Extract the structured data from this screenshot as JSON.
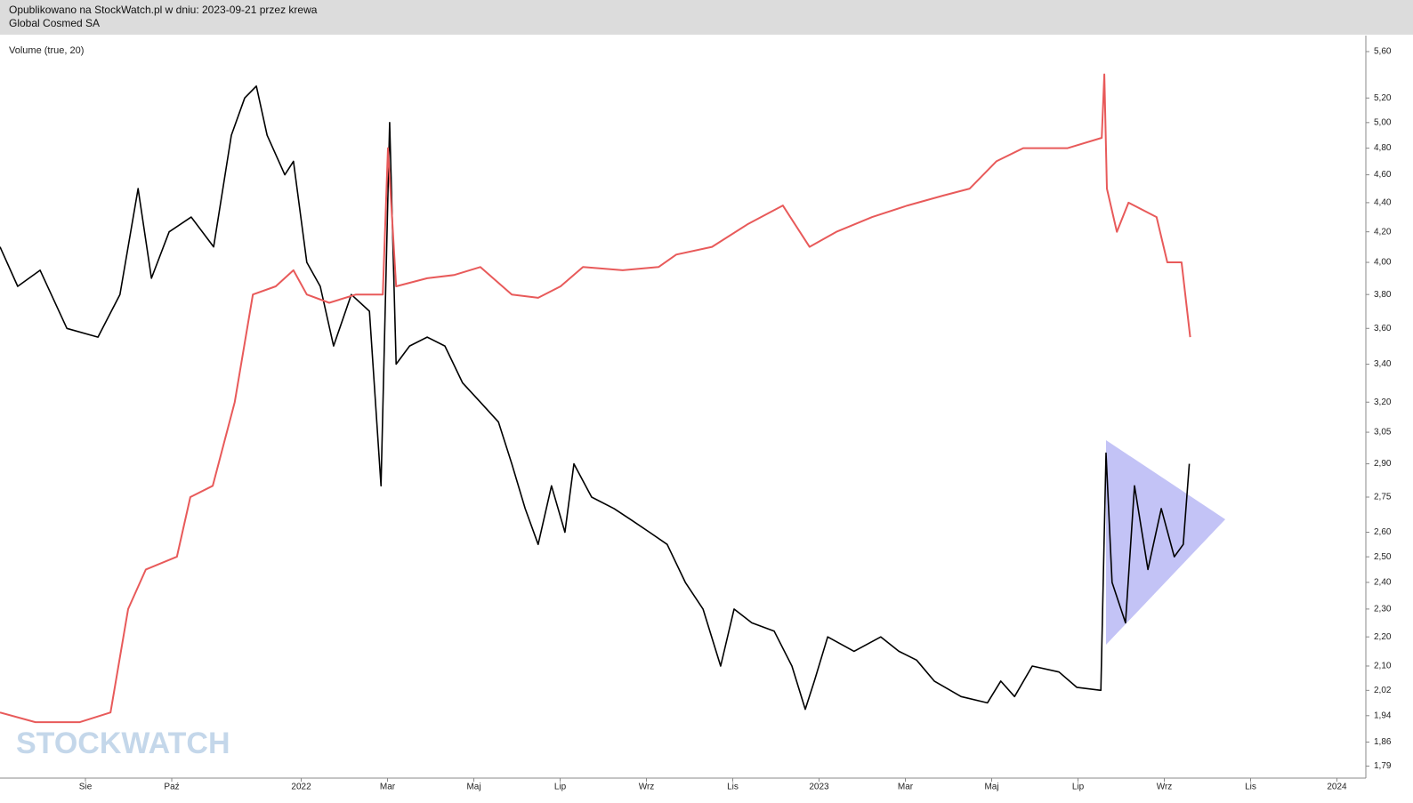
{
  "header": {
    "published": "Opublikowano na StockWatch.pl w dniu: 2023-09-21 przez krewa",
    "instrument": "Global Cosmed SA"
  },
  "watermark": "STOCKWATCH",
  "chart_data": {
    "type": "line",
    "subtitle": "Volume (true, 20)",
    "log_scale": true,
    "xlim": [
      -0.98,
      30.67
    ],
    "xticks": [
      {
        "value": 1,
        "label": "Sie"
      },
      {
        "value": 3,
        "label": "Paź"
      },
      {
        "value": 6,
        "label": "2022"
      },
      {
        "value": 8,
        "label": "Mar"
      },
      {
        "value": 10,
        "label": "Maj"
      },
      {
        "value": 12,
        "label": "Lip"
      },
      {
        "value": 14,
        "label": "Wrz"
      },
      {
        "value": 16,
        "label": "Lis"
      },
      {
        "value": 18,
        "label": "2023"
      },
      {
        "value": 20,
        "label": "Mar"
      },
      {
        "value": 22,
        "label": "Maj"
      },
      {
        "value": 24,
        "label": "Lip"
      },
      {
        "value": 26,
        "label": "Wrz"
      },
      {
        "value": 28,
        "label": "Lis"
      },
      {
        "value": 30,
        "label": "2024"
      }
    ],
    "ylim": [
      1.756,
      5.745
    ],
    "yticks": [
      {
        "value": 5.6,
        "label": "5,60"
      },
      {
        "value": 5.2,
        "label": "5,20"
      },
      {
        "value": 5.0,
        "label": "5,00"
      },
      {
        "value": 4.8,
        "label": "4,80"
      },
      {
        "value": 4.6,
        "label": "4,60"
      },
      {
        "value": 4.4,
        "label": "4,40"
      },
      {
        "value": 4.2,
        "label": "4,20"
      },
      {
        "value": 4.0,
        "label": "4,00"
      },
      {
        "value": 3.8,
        "label": "3,80"
      },
      {
        "value": 3.6,
        "label": "3,60"
      },
      {
        "value": 3.4,
        "label": "3,40"
      },
      {
        "value": 3.2,
        "label": "3,20"
      },
      {
        "value": 3.05,
        "label": "3,05"
      },
      {
        "value": 2.9,
        "label": "2,90"
      },
      {
        "value": 2.75,
        "label": "2,75"
      },
      {
        "value": 2.6,
        "label": "2,60"
      },
      {
        "value": 2.5,
        "label": "2,50"
      },
      {
        "value": 2.4,
        "label": "2,40"
      },
      {
        "value": 2.3,
        "label": "2,30"
      },
      {
        "value": 2.2,
        "label": "2,20"
      },
      {
        "value": 2.1,
        "label": "2,10"
      },
      {
        "value": 2.02,
        "label": "2,02"
      },
      {
        "value": 1.94,
        "label": "1,94"
      },
      {
        "value": 1.86,
        "label": "1,86"
      },
      {
        "value": 1.79,
        "label": "1,79"
      }
    ],
    "series": [
      {
        "color": "#000000",
        "x": [
          -0.98,
          -0.57,
          -0.05,
          0.57,
          1.29,
          1.8,
          2.22,
          2.53,
          2.94,
          3.45,
          3.97,
          4.38,
          4.69,
          4.96,
          5.21,
          5.62,
          5.82,
          6.13,
          6.44,
          6.75,
          7.16,
          7.58,
          7.85,
          8.05,
          8.2,
          8.51,
          8.92,
          9.33,
          9.74,
          10.15,
          10.57,
          10.88,
          11.19,
          11.49,
          11.8,
          12.11,
          12.32,
          12.73,
          13.25,
          13.66,
          14.07,
          14.48,
          14.9,
          15.31,
          15.72,
          16.03,
          16.44,
          16.96,
          17.37,
          17.68,
          17.89,
          18.2,
          18.81,
          19.43,
          19.85,
          20.26,
          20.67,
          21.29,
          21.9,
          22.21,
          22.53,
          22.94,
          23.56,
          23.97,
          24.53,
          24.65,
          24.79,
          25.1,
          25.31,
          25.62,
          25.93,
          26.23,
          26.44,
          26.58
        ],
        "values": [
          4.1,
          3.85,
          3.95,
          3.6,
          3.55,
          3.8,
          4.5,
          3.9,
          4.2,
          4.3,
          4.1,
          4.9,
          5.2,
          5.3,
          4.9,
          4.6,
          4.7,
          4.0,
          3.85,
          3.5,
          3.8,
          3.7,
          2.8,
          5.0,
          3.4,
          3.5,
          3.55,
          3.5,
          3.3,
          3.2,
          3.1,
          2.9,
          2.7,
          2.55,
          2.8,
          2.6,
          2.9,
          2.75,
          2.7,
          2.65,
          2.6,
          2.55,
          2.4,
          2.3,
          2.1,
          2.3,
          2.25,
          2.22,
          2.1,
          1.96,
          2.05,
          2.2,
          2.15,
          2.2,
          2.15,
          2.12,
          2.05,
          2.0,
          1.98,
          2.05,
          2.0,
          2.1,
          2.08,
          2.03,
          2.02,
          2.95,
          2.4,
          2.25,
          2.8,
          2.45,
          2.7,
          2.5,
          2.55,
          2.9
        ]
      },
      {
        "color": "#e85a5a",
        "x": [
          -0.98,
          -0.16,
          0.87,
          1.58,
          1.99,
          2.4,
          3.12,
          3.43,
          3.95,
          4.46,
          4.88,
          5.41,
          5.82,
          6.13,
          6.65,
          7.27,
          7.89,
          8.01,
          8.2,
          8.92,
          9.54,
          10.15,
          10.88,
          11.49,
          12.01,
          12.53,
          13.45,
          14.28,
          14.69,
          15.52,
          16.34,
          17.16,
          17.78,
          18.4,
          19.23,
          20.05,
          20.88,
          21.49,
          22.11,
          22.73,
          23.76,
          24.55,
          24.61,
          24.67,
          24.9,
          25.17,
          25.82,
          26.07,
          26.4,
          26.6
        ],
        "values": [
          1.95,
          1.92,
          1.92,
          1.95,
          2.3,
          2.45,
          2.5,
          2.75,
          2.8,
          3.2,
          3.8,
          3.85,
          3.95,
          3.8,
          3.75,
          3.8,
          3.8,
          4.8,
          3.85,
          3.9,
          3.92,
          3.97,
          3.8,
          3.78,
          3.85,
          3.97,
          3.95,
          3.97,
          4.05,
          4.1,
          4.25,
          4.38,
          4.1,
          4.2,
          4.3,
          4.38,
          4.45,
          4.5,
          4.7,
          4.8,
          4.8,
          4.88,
          5.4,
          4.5,
          4.2,
          4.4,
          4.3,
          4.0,
          4.0,
          3.55
        ]
      }
    ]
  }
}
